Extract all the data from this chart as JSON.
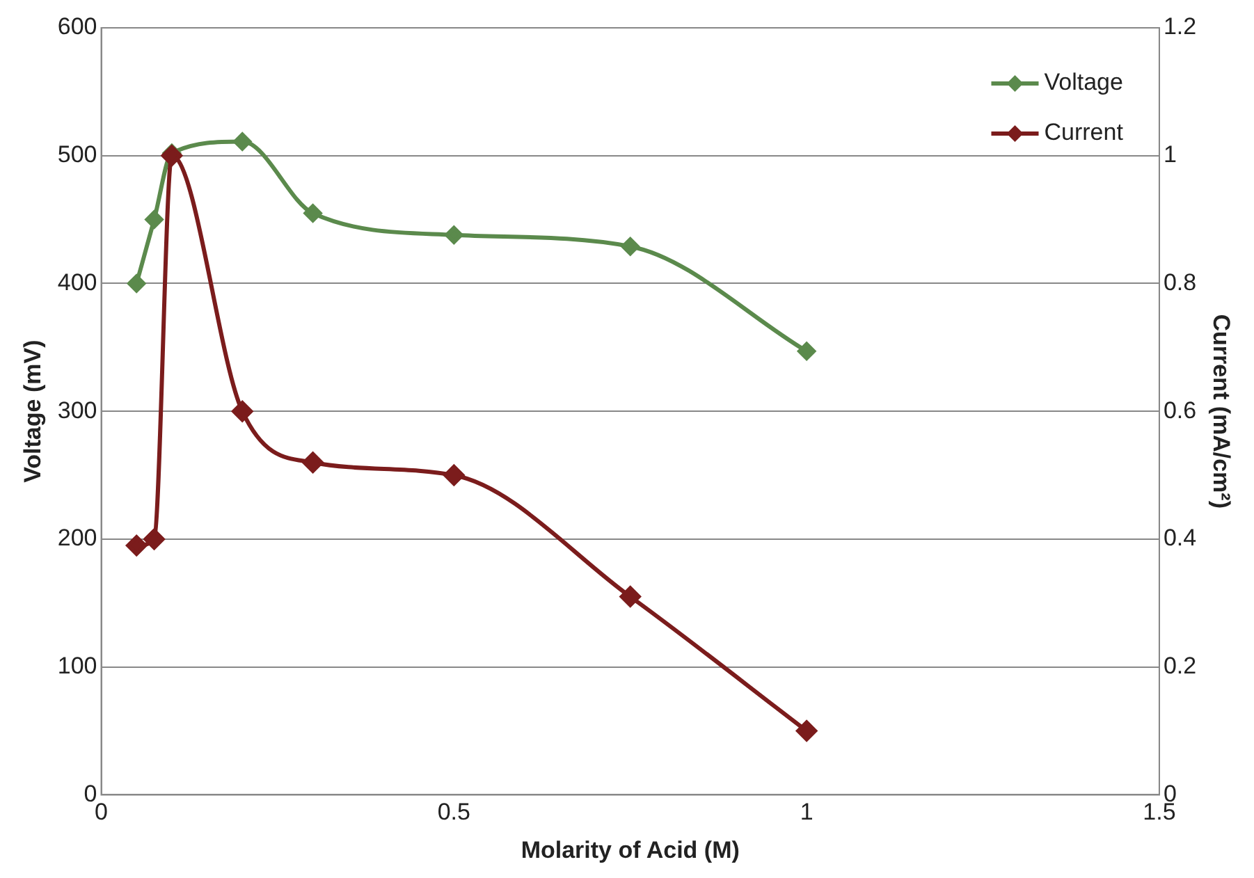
{
  "chart_data": {
    "type": "line",
    "xlabel": "Molarity of Acid (M)",
    "ylabel": "Voltage (mV)",
    "y2label": "Current (mA/cm²)",
    "x": [
      0.05,
      0.075,
      0.1,
      0.2,
      0.3,
      0.5,
      0.75,
      1
    ],
    "series": [
      {
        "name": "Voltage",
        "color": "#5b8a4c",
        "values": [
          400,
          450,
          502,
          511,
          455,
          438,
          429,
          347
        ]
      },
      {
        "name": "Current",
        "color": "#7b1c1c",
        "axis": "y2",
        "values": [
          0.39,
          0.4,
          1.0,
          0.6,
          0.52,
          0.5,
          0.31,
          0.1
        ]
      }
    ],
    "xlim": [
      0,
      1.5
    ],
    "xticks": [
      0,
      0.5,
      1,
      1.5
    ],
    "ylim": [
      0,
      600
    ],
    "yticks": [
      0,
      100,
      200,
      300,
      400,
      500,
      600
    ],
    "y2lim": [
      0,
      1.2
    ],
    "y2ticks": [
      0,
      0.2,
      0.4,
      0.6,
      0.8,
      1,
      1.2
    ],
    "grid": "y",
    "legend": "top right",
    "marker": "diamond",
    "line_style": "solid"
  }
}
